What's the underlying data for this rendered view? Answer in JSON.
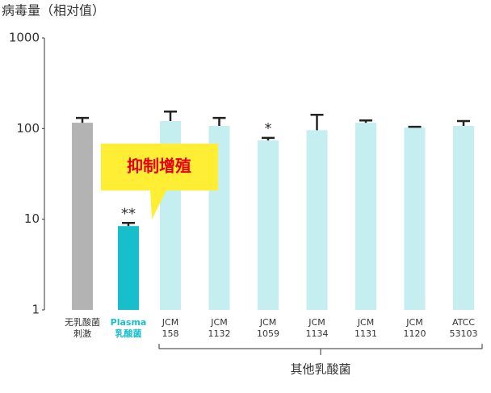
{
  "chart_data": {
    "type": "bar",
    "y_label": "病毒量（相对值）",
    "log_scale": true,
    "ylim": [
      1,
      1000
    ],
    "yticks": [
      1,
      10,
      100,
      1000
    ],
    "categories": [
      [
        "无乳酸菌",
        "刺激"
      ],
      [
        "Plasma",
        "乳酸菌"
      ],
      [
        "JCM",
        "158"
      ],
      [
        "JCM",
        "1132"
      ],
      [
        "JCM",
        "1059"
      ],
      [
        "JCM",
        "1134"
      ],
      [
        "JCM",
        "1131"
      ],
      [
        "JCM",
        "1120"
      ],
      [
        "ATCC",
        "53103"
      ]
    ],
    "values": [
      116,
      8.4,
      121,
      107,
      74,
      96,
      116,
      102.5,
      107
    ],
    "errors": [
      15,
      0.7,
      33,
      24,
      5,
      46,
      7,
      2,
      14
    ],
    "colors": [
      "#b3b3b3",
      "#17bfcc",
      "#c5eef0",
      "#c5eef0",
      "#c5eef0",
      "#c5eef0",
      "#c5eef0",
      "#c5eef0",
      "#c5eef0"
    ],
    "label_colors": [
      "#333333",
      "#17bfcc",
      "#333333",
      "#333333",
      "#333333",
      "#333333",
      "#333333",
      "#333333",
      "#333333"
    ],
    "significance": [
      null,
      "**",
      null,
      null,
      "*",
      null,
      null,
      null,
      null
    ],
    "callout": "抑制增殖",
    "group_label": "其他乳酸菌"
  }
}
